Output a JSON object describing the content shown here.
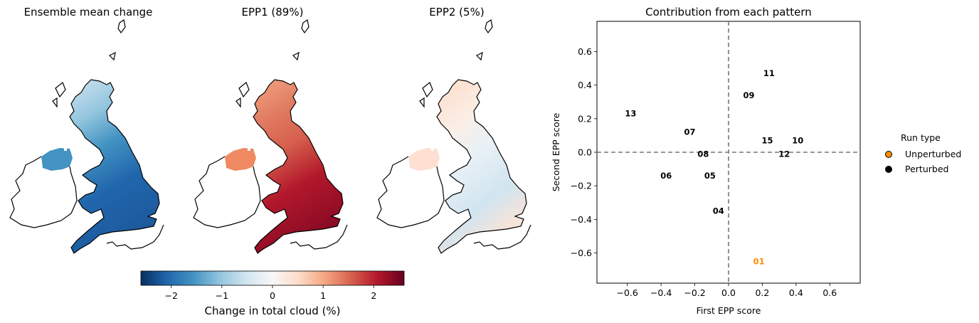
{
  "maps": [
    {
      "title": "Ensemble mean change",
      "scheme": "mean"
    },
    {
      "title": "EPP1 (89%)",
      "scheme": "epp1"
    },
    {
      "title": "EPP2 (5%)",
      "scheme": "epp2"
    }
  ],
  "colorbar": {
    "label": "Change in total cloud (%)",
    "range": [
      -2.6,
      2.6
    ],
    "ticks": [
      -2,
      -1,
      0,
      1,
      2
    ],
    "tick_labels": [
      "−2",
      "−1",
      "0",
      "1",
      "2"
    ],
    "colormap": "RdBu_r"
  },
  "chart_data": {
    "type": "scatter",
    "title": "Contribution from each pattern",
    "xlabel": "First EPP score",
    "ylabel": "Second EPP score",
    "xlim": [
      -0.78,
      0.78
    ],
    "ylim": [
      -0.78,
      0.78
    ],
    "xticks": [
      -0.6,
      -0.4,
      -0.2,
      0.0,
      0.2,
      0.4,
      0.6
    ],
    "yticks": [
      -0.6,
      -0.4,
      -0.2,
      0.0,
      0.2,
      0.4,
      0.6
    ],
    "tick_labels": [
      "−0.6",
      "−0.4",
      "−0.2",
      "0.0",
      "0.2",
      "0.4",
      "0.6"
    ],
    "reference_lines": {
      "x": 0,
      "y": 0,
      "style": "dashed"
    },
    "points": [
      {
        "label": "01",
        "x": 0.18,
        "y": -0.65,
        "run_type": "Unperturbed"
      },
      {
        "label": "04",
        "x": -0.06,
        "y": -0.35,
        "run_type": "Perturbed"
      },
      {
        "label": "05",
        "x": -0.11,
        "y": -0.14,
        "run_type": "Perturbed"
      },
      {
        "label": "06",
        "x": -0.37,
        "y": -0.14,
        "run_type": "Perturbed"
      },
      {
        "label": "07",
        "x": -0.23,
        "y": 0.12,
        "run_type": "Perturbed"
      },
      {
        "label": "08",
        "x": -0.15,
        "y": -0.01,
        "run_type": "Perturbed"
      },
      {
        "label": "09",
        "x": 0.12,
        "y": 0.34,
        "run_type": "Perturbed"
      },
      {
        "label": "10",
        "x": 0.41,
        "y": 0.07,
        "run_type": "Perturbed"
      },
      {
        "label": "11",
        "x": 0.24,
        "y": 0.47,
        "run_type": "Perturbed"
      },
      {
        "label": "12",
        "x": 0.33,
        "y": -0.01,
        "run_type": "Perturbed"
      },
      {
        "label": "13",
        "x": -0.58,
        "y": 0.23,
        "run_type": "Perturbed"
      },
      {
        "label": "15",
        "x": 0.23,
        "y": 0.07,
        "run_type": "Perturbed"
      }
    ],
    "legend": {
      "title": "Run type",
      "placement": "right",
      "entries": [
        {
          "name": "Unperturbed",
          "color": "#ff8c00"
        },
        {
          "name": "Perturbed",
          "color": "#000000"
        }
      ]
    }
  }
}
